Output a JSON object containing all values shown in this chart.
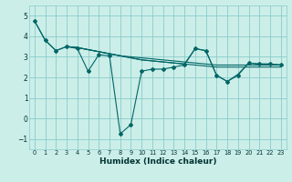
{
  "xlabel": "Humidex (Indice chaleur)",
  "bg_color": "#cceee8",
  "grid_color": "#88cccc",
  "line_color": "#006666",
  "xlim": [
    -0.5,
    23.5
  ],
  "ylim": [
    -1.5,
    5.5
  ],
  "yticks": [
    -1,
    0,
    1,
    2,
    3,
    4,
    5
  ],
  "xticks": [
    0,
    1,
    2,
    3,
    4,
    5,
    6,
    7,
    8,
    9,
    10,
    11,
    12,
    13,
    14,
    15,
    16,
    17,
    18,
    19,
    20,
    21,
    22,
    23
  ],
  "series1": [
    [
      0,
      4.75
    ],
    [
      1,
      3.8
    ],
    [
      2,
      3.3
    ],
    [
      3,
      3.5
    ],
    [
      4,
      3.4
    ],
    [
      5,
      2.3
    ],
    [
      6,
      3.1
    ],
    [
      7,
      3.05
    ],
    [
      8,
      -0.75
    ],
    [
      9,
      -0.3
    ],
    [
      10,
      2.3
    ],
    [
      11,
      2.4
    ],
    [
      12,
      2.4
    ],
    [
      13,
      2.5
    ],
    [
      14,
      2.6
    ],
    [
      15,
      3.4
    ],
    [
      16,
      3.3
    ],
    [
      17,
      2.1
    ],
    [
      18,
      1.8
    ],
    [
      19,
      2.1
    ],
    [
      20,
      2.7
    ],
    [
      21,
      2.65
    ],
    [
      22,
      2.65
    ],
    [
      23,
      2.6
    ]
  ],
  "series2": [
    [
      0,
      4.75
    ],
    [
      1,
      3.8
    ],
    [
      2,
      3.3
    ],
    [
      3,
      3.5
    ],
    [
      4,
      3.45
    ],
    [
      5,
      3.35
    ],
    [
      6,
      3.25
    ],
    [
      7,
      3.15
    ],
    [
      8,
      3.05
    ],
    [
      9,
      3.0
    ],
    [
      10,
      2.95
    ],
    [
      11,
      2.9
    ],
    [
      12,
      2.85
    ],
    [
      13,
      2.8
    ],
    [
      14,
      2.75
    ],
    [
      15,
      2.7
    ],
    [
      16,
      2.65
    ],
    [
      17,
      2.6
    ],
    [
      18,
      2.6
    ],
    [
      19,
      2.6
    ],
    [
      20,
      2.6
    ],
    [
      21,
      2.6
    ],
    [
      22,
      2.6
    ],
    [
      23,
      2.6
    ]
  ],
  "series3": [
    [
      3,
      3.5
    ],
    [
      4,
      3.45
    ],
    [
      5,
      3.35
    ],
    [
      6,
      3.25
    ],
    [
      7,
      3.15
    ],
    [
      8,
      3.05
    ],
    [
      9,
      2.95
    ],
    [
      10,
      2.85
    ],
    [
      11,
      2.8
    ],
    [
      12,
      2.75
    ],
    [
      13,
      2.7
    ],
    [
      14,
      2.65
    ],
    [
      15,
      3.4
    ],
    [
      16,
      3.3
    ],
    [
      17,
      2.1
    ],
    [
      18,
      1.8
    ],
    [
      19,
      2.15
    ],
    [
      20,
      2.7
    ],
    [
      21,
      2.65
    ],
    [
      22,
      2.65
    ],
    [
      23,
      2.6
    ]
  ],
  "series4": [
    [
      3,
      3.5
    ],
    [
      4,
      3.45
    ],
    [
      5,
      3.35
    ],
    [
      6,
      3.25
    ],
    [
      7,
      3.15
    ],
    [
      8,
      3.05
    ],
    [
      9,
      2.95
    ],
    [
      10,
      2.85
    ],
    [
      11,
      2.8
    ],
    [
      12,
      2.75
    ],
    [
      13,
      2.7
    ],
    [
      14,
      2.65
    ],
    [
      15,
      2.6
    ],
    [
      16,
      2.55
    ],
    [
      17,
      2.5
    ],
    [
      18,
      2.5
    ],
    [
      19,
      2.5
    ],
    [
      20,
      2.5
    ],
    [
      21,
      2.5
    ],
    [
      22,
      2.5
    ],
    [
      23,
      2.5
    ]
  ]
}
